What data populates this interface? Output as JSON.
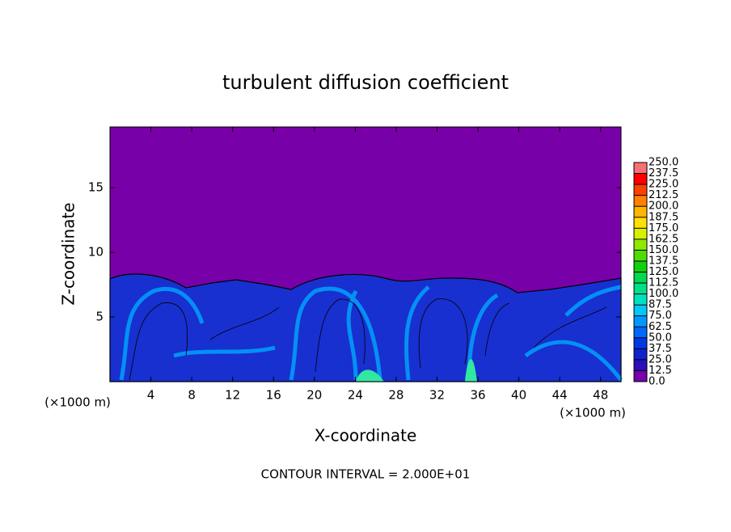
{
  "chart_data": {
    "type": "contour",
    "title": "turbulent diffusion coefficient",
    "xlabel": "X-coordinate",
    "ylabel": "Z-coordinate",
    "x_unit": "(×1000 m)",
    "y_unit": "(×1000 m)",
    "annotation": "CONTOUR INTERVAL = 2.000E+01",
    "xlim": [
      0,
      50
    ],
    "xticks": [
      4,
      8,
      12,
      16,
      20,
      24,
      28,
      32,
      36,
      40,
      44,
      48
    ],
    "ylim": [
      0,
      19.7
    ],
    "yticks": [
      5,
      10,
      15
    ],
    "colorbar_ticks": [
      {
        "value": 0,
        "label": "0.0"
      },
      {
        "value": 12.5,
        "label": "12.5"
      },
      {
        "value": 25,
        "label": "25.0"
      },
      {
        "value": 37.5,
        "label": "37.5"
      },
      {
        "value": 50,
        "label": "50.0"
      },
      {
        "value": 62.5,
        "label": "62.5"
      },
      {
        "value": 75,
        "label": "75.0"
      },
      {
        "value": 87.5,
        "label": "87.5"
      },
      {
        "value": 100,
        "label": "100.0"
      },
      {
        "value": 112.5,
        "label": "112.5"
      },
      {
        "value": 125,
        "label": "125.0"
      },
      {
        "value": 137.5,
        "label": "137.5"
      },
      {
        "value": 150,
        "label": "150.0"
      },
      {
        "value": 162.5,
        "label": "162.5"
      },
      {
        "value": 175,
        "label": "175.0"
      },
      {
        "value": 187.5,
        "label": "187.5"
      },
      {
        "value": 200,
        "label": "200.0"
      },
      {
        "value": 212.5,
        "label": "212.5"
      },
      {
        "value": 225,
        "label": "225.0"
      },
      {
        "value": 237.5,
        "label": "237.5"
      },
      {
        "value": 250,
        "label": "250.0"
      }
    ],
    "colorbar_colors": [
      "#7800a8",
      "#2a10b8",
      "#1020d0",
      "#0038e8",
      "#0068ff",
      "#0098ff",
      "#00c8f8",
      "#00e0c0",
      "#00e088",
      "#00d850",
      "#10d010",
      "#50dc00",
      "#90e800",
      "#d8f000",
      "#ffe000",
      "#ffb400",
      "#ff8000",
      "#ff4000",
      "#ff0000",
      "#f87070"
    ]
  }
}
